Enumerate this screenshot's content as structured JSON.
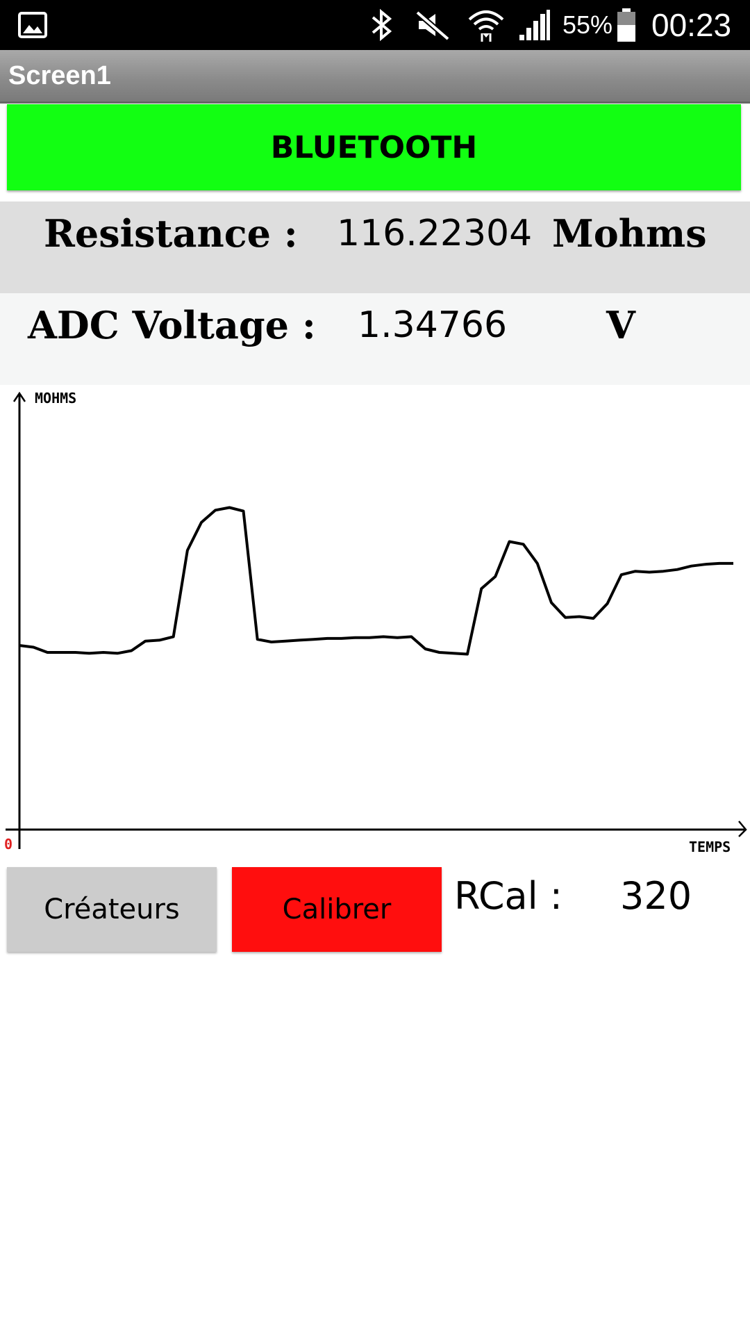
{
  "status_bar": {
    "battery_percent": "55%",
    "time": "00:23",
    "icons": [
      "gallery-icon",
      "bluetooth-icon",
      "mute-icon",
      "wifi-icon",
      "signal-icon",
      "battery-icon"
    ]
  },
  "title_bar": {
    "title": "Screen1"
  },
  "bluetooth_button": {
    "label": "BLUETOOTH",
    "color": "#12ff12"
  },
  "readings": {
    "resistance": {
      "label": "Resistance :",
      "value": "116.22304",
      "unit": "Mohms"
    },
    "adc_voltage": {
      "label": "ADC Voltage :",
      "value": "1.34766",
      "unit": "V"
    }
  },
  "chart_data": {
    "type": "line",
    "ylabel": "MOHMS",
    "xlabel": "TEMPS",
    "origin_label": "0",
    "grid": false,
    "series": [
      {
        "values": [
          211,
          209,
          203,
          203,
          203,
          202,
          203,
          202,
          205,
          216,
          217,
          221,
          320,
          352,
          366,
          369,
          365,
          218,
          215,
          216,
          217,
          218,
          219,
          219,
          220,
          220,
          221,
          220,
          221,
          207,
          203,
          202,
          201,
          276,
          290,
          330,
          327,
          305,
          260,
          243,
          244,
          242,
          259,
          292,
          296,
          295,
          296,
          298,
          302,
          304,
          305,
          305
        ]
      }
    ]
  },
  "buttons": {
    "creators": {
      "label": "Créateurs",
      "color": "#cccccc"
    },
    "calibrate": {
      "label": "Calibrer",
      "color": "#ff0e0e"
    }
  },
  "rcal": {
    "label": "RCal :",
    "value": "320"
  }
}
